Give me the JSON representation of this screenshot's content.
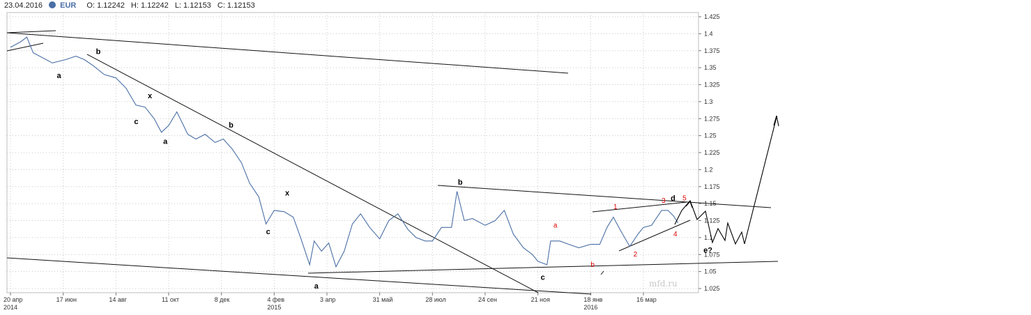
{
  "header": {
    "date": "23.04.2016",
    "symbol": "EUR",
    "open_label": "O: 1.12242",
    "high_label": "H: 1.12242",
    "low_label": "L: 1.12153",
    "close_label": "C: 1.12153"
  },
  "watermark": "mfd.ru",
  "colors": {
    "price_line": "#4a6fa5",
    "wave_label_black": "#000000",
    "wave_label_red": "#dd0000",
    "grid": "#c8c8c8"
  },
  "chart_data": {
    "type": "line",
    "title": "",
    "xlabel": "",
    "ylabel": "",
    "ylim": [
      1.01,
      1.43
    ],
    "y_ticks": [
      "1.425",
      "1.4",
      "1.375",
      "1.35",
      "1.325",
      "1.3",
      "1.275",
      "1.25",
      "1.225",
      "1.2",
      "1.175",
      "1.15",
      "1.125",
      "1.1",
      "1.075",
      "1.05",
      "1.025"
    ],
    "x_ticks": [
      {
        "label": "20 апр",
        "year": "2014",
        "x": "2014-04-20"
      },
      {
        "label": "17 июн",
        "year": "",
        "x": "2014-06-17"
      },
      {
        "label": "14 авг",
        "year": "",
        "x": "2014-08-14"
      },
      {
        "label": "11 окт",
        "year": "",
        "x": "2014-10-11"
      },
      {
        "label": "8 дек",
        "year": "",
        "x": "2014-12-08"
      },
      {
        "label": "4 фев",
        "year": "2015",
        "x": "2015-02-04"
      },
      {
        "label": "3 апр",
        "year": "",
        "x": "2015-04-03"
      },
      {
        "label": "31 май",
        "year": "",
        "x": "2015-05-31"
      },
      {
        "label": "28 июл",
        "year": "",
        "x": "2015-07-28"
      },
      {
        "label": "24 сен",
        "year": "",
        "x": "2015-09-24"
      },
      {
        "label": "21 ноя",
        "year": "",
        "x": "2015-11-21"
      },
      {
        "label": "18 янв",
        "year": "2016",
        "x": "2016-01-18"
      },
      {
        "label": "16 мар",
        "year": "",
        "x": "2016-03-16"
      }
    ],
    "series": [
      {
        "values": [
          [
            "2014-04-20",
            1.38
          ],
          [
            "2014-05-01",
            1.388
          ],
          [
            "2014-05-08",
            1.395
          ],
          [
            "2014-05-15",
            1.372
          ],
          [
            "2014-05-29",
            1.362
          ],
          [
            "2014-06-05",
            1.357
          ],
          [
            "2014-06-20",
            1.362
          ],
          [
            "2014-07-01",
            1.367
          ],
          [
            "2014-07-10",
            1.362
          ],
          [
            "2014-07-20",
            1.353
          ],
          [
            "2014-08-01",
            1.34
          ],
          [
            "2014-08-14",
            1.335
          ],
          [
            "2014-08-25",
            1.32
          ],
          [
            "2014-09-05",
            1.295
          ],
          [
            "2014-09-15",
            1.292
          ],
          [
            "2014-09-25",
            1.275
          ],
          [
            "2014-10-03",
            1.255
          ],
          [
            "2014-10-11",
            1.265
          ],
          [
            "2014-10-20",
            1.285
          ],
          [
            "2014-11-01",
            1.252
          ],
          [
            "2014-11-10",
            1.245
          ],
          [
            "2014-11-20",
            1.252
          ],
          [
            "2014-12-01",
            1.24
          ],
          [
            "2014-12-10",
            1.245
          ],
          [
            "2014-12-20",
            1.23
          ],
          [
            "2014-12-30",
            1.21
          ],
          [
            "2015-01-08",
            1.18
          ],
          [
            "2015-01-18",
            1.16
          ],
          [
            "2015-01-26",
            1.12
          ],
          [
            "2015-02-04",
            1.14
          ],
          [
            "2015-02-15",
            1.138
          ],
          [
            "2015-02-25",
            1.13
          ],
          [
            "2015-03-05",
            1.1
          ],
          [
            "2015-03-15",
            1.06
          ],
          [
            "2015-03-20",
            1.095
          ],
          [
            "2015-03-28",
            1.08
          ],
          [
            "2015-04-05",
            1.092
          ],
          [
            "2015-04-13",
            1.057
          ],
          [
            "2015-04-22",
            1.08
          ],
          [
            "2015-05-01",
            1.12
          ],
          [
            "2015-05-10",
            1.135
          ],
          [
            "2015-05-20",
            1.115
          ],
          [
            "2015-05-31",
            1.098
          ],
          [
            "2015-06-10",
            1.125
          ],
          [
            "2015-06-20",
            1.135
          ],
          [
            "2015-07-01",
            1.112
          ],
          [
            "2015-07-10",
            1.1
          ],
          [
            "2015-07-20",
            1.095
          ],
          [
            "2015-07-28",
            1.095
          ],
          [
            "2015-08-07",
            1.115
          ],
          [
            "2015-08-18",
            1.115
          ],
          [
            "2015-08-24",
            1.168
          ],
          [
            "2015-09-01",
            1.125
          ],
          [
            "2015-09-10",
            1.128
          ],
          [
            "2015-09-24",
            1.118
          ],
          [
            "2015-10-05",
            1.125
          ],
          [
            "2015-10-15",
            1.14
          ],
          [
            "2015-10-25",
            1.105
          ],
          [
            "2015-11-05",
            1.085
          ],
          [
            "2015-11-15",
            1.075
          ],
          [
            "2015-11-21",
            1.065
          ],
          [
            "2015-12-01",
            1.06
          ],
          [
            "2015-12-05",
            1.095
          ],
          [
            "2015-12-15",
            1.095
          ],
          [
            "2015-12-25",
            1.09
          ],
          [
            "2016-01-05",
            1.085
          ],
          [
            "2016-01-18",
            1.09
          ],
          [
            "2016-01-28",
            1.09
          ],
          [
            "2016-02-05",
            1.115
          ],
          [
            "2016-02-12",
            1.13
          ],
          [
            "2016-02-20",
            1.11
          ],
          [
            "2016-03-01",
            1.087
          ],
          [
            "2016-03-10",
            1.105
          ],
          [
            "2016-03-16",
            1.115
          ],
          [
            "2016-03-25",
            1.118
          ],
          [
            "2016-04-05",
            1.14
          ],
          [
            "2016-04-12",
            1.14
          ],
          [
            "2016-04-18",
            1.132
          ],
          [
            "2016-04-23",
            1.1215
          ]
        ]
      }
    ],
    "annotations": {
      "black": [
        {
          "text": "a",
          "x": "2014-06-10",
          "y": 1.335
        },
        {
          "text": "b",
          "x": "2014-07-23",
          "y": 1.37
        },
        {
          "text": "c",
          "x": "2014-09-03",
          "y": 1.267
        },
        {
          "text": "x",
          "x": "2014-09-18",
          "y": 1.305
        },
        {
          "text": "a",
          "x": "2014-10-05",
          "y": 1.238
        },
        {
          "text": "b",
          "x": "2014-12-16",
          "y": 1.262
        },
        {
          "text": "x",
          "x": "2015-02-16",
          "y": 1.162
        },
        {
          "text": "c",
          "x": "2015-01-26",
          "y": 1.105
        },
        {
          "text": "a",
          "x": "2015-03-20",
          "y": 1.025
        },
        {
          "text": "b",
          "x": "2015-08-25",
          "y": 1.178
        },
        {
          "text": "c",
          "x": "2015-11-24",
          "y": 1.038
        },
        {
          "text": "d",
          "x": "2016-04-15",
          "y": 1.154
        },
        {
          "text": "e?",
          "x": "2016-05-21",
          "y": 1.078
        }
      ],
      "red": [
        {
          "text": "a",
          "x": "2015-12-08",
          "y": 1.115
        },
        {
          "text": "b",
          "x": "2016-01-18",
          "y": 1.057
        },
        {
          "text": "1",
          "x": "2016-02-12",
          "y": 1.142
        },
        {
          "text": "2",
          "x": "2016-03-05",
          "y": 1.072
        },
        {
          "text": "3",
          "x": "2016-04-05",
          "y": 1.151
        },
        {
          "text": "4",
          "x": "2016-04-18",
          "y": 1.102
        },
        {
          "text": "5",
          "x": "2016-04-28",
          "y": 1.155
        }
      ]
    }
  }
}
